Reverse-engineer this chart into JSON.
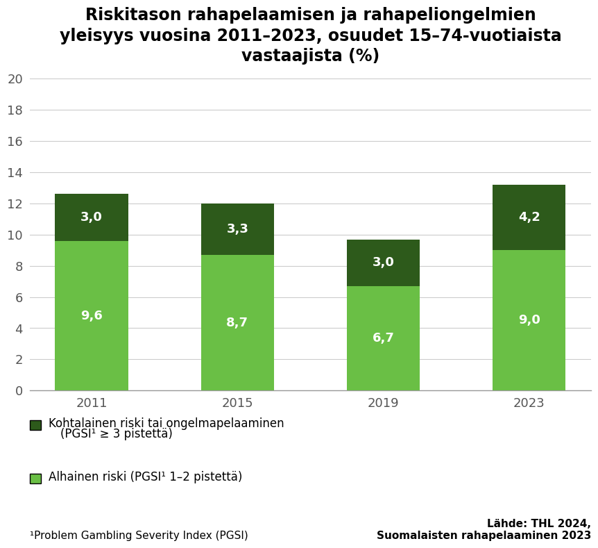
{
  "title": "Riskitason rahapelaamisen ja rahapeliongelmien\nyleisyys vuosina 2011–2023, osuudet 15–74-vuotiaista\nvastaajista (%)",
  "years": [
    "2011",
    "2015",
    "2019",
    "2023"
  ],
  "low_risk": [
    9.6,
    8.7,
    6.7,
    9.0
  ],
  "moderate_risk": [
    3.0,
    3.3,
    3.0,
    4.2
  ],
  "color_low": "#6abf45",
  "color_moderate": "#2d5a1b",
  "ylim": [
    0,
    20
  ],
  "yticks": [
    0,
    2,
    4,
    6,
    8,
    10,
    12,
    14,
    16,
    18,
    20
  ],
  "bar_width": 0.5,
  "legend1_label_line1": "Kohtalainen riski tai ongelmapelaaminen",
  "legend1_label_line2": "(PGSI¹ ≥ 3 pistettä)",
  "legend2_label": "Alhainen riski (PGSI¹ 1–2 pistettä)",
  "footnote": "¹Problem Gambling Severity Index (PGSI)",
  "source_label": "Lähde: THL 2024,\nSuomalaisten rahapelaaminen 2023",
  "label_fontsize": 13,
  "tick_fontsize": 13,
  "title_fontsize": 17,
  "legend_fontsize": 12,
  "footnote_fontsize": 11,
  "background_color": "#ffffff",
  "grid_color": "#cccccc",
  "spine_color": "#999999"
}
